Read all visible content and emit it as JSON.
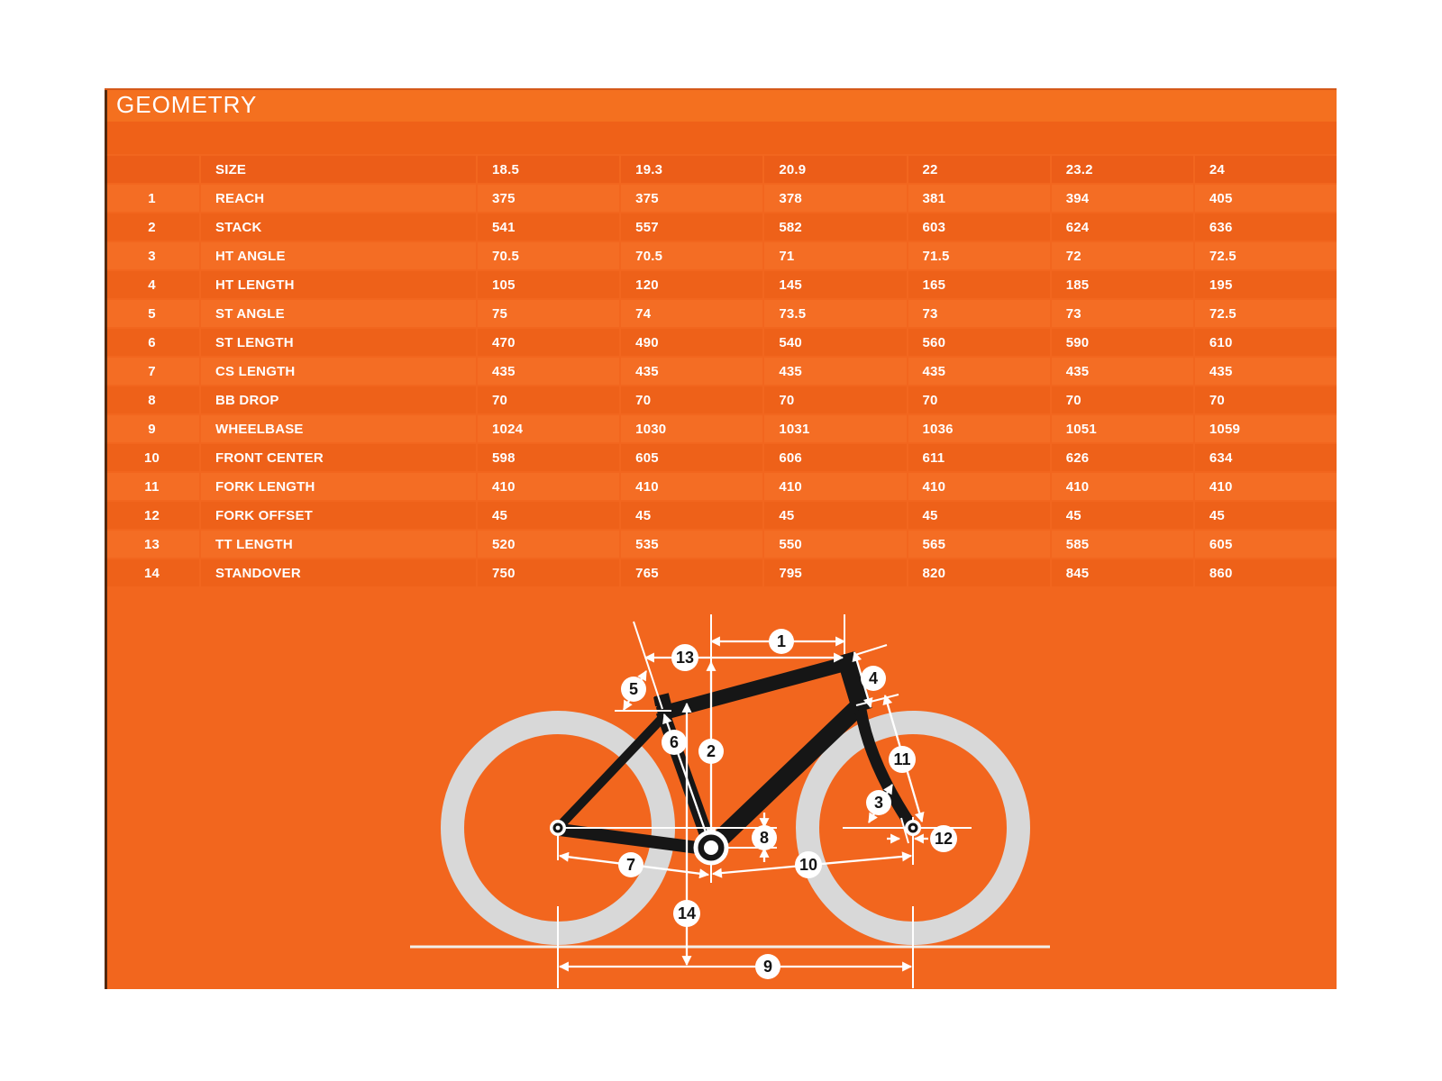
{
  "header": {
    "title": "GEOMETRY"
  },
  "table": {
    "size_label": "SIZE",
    "columns": [
      "18.5",
      "19.3",
      "20.9",
      "22",
      "23.2",
      "24"
    ],
    "rows": [
      {
        "num": "1",
        "label": "REACH",
        "values": [
          "375",
          "375",
          "378",
          "381",
          "394",
          "405"
        ]
      },
      {
        "num": "2",
        "label": "STACK",
        "values": [
          "541",
          "557",
          "582",
          "603",
          "624",
          "636"
        ]
      },
      {
        "num": "3",
        "label": "HT ANGLE",
        "values": [
          "70.5",
          "70.5",
          "71",
          "71.5",
          "72",
          "72.5"
        ]
      },
      {
        "num": "4",
        "label": "HT LENGTH",
        "values": [
          "105",
          "120",
          "145",
          "165",
          "185",
          "195"
        ]
      },
      {
        "num": "5",
        "label": "ST ANGLE",
        "values": [
          "75",
          "74",
          "73.5",
          "73",
          "73",
          "72.5"
        ]
      },
      {
        "num": "6",
        "label": "ST LENGTH",
        "values": [
          "470",
          "490",
          "540",
          "560",
          "590",
          "610"
        ]
      },
      {
        "num": "7",
        "label": "CS LENGTH",
        "values": [
          "435",
          "435",
          "435",
          "435",
          "435",
          "435"
        ]
      },
      {
        "num": "8",
        "label": "BB DROP",
        "values": [
          "70",
          "70",
          "70",
          "70",
          "70",
          "70"
        ]
      },
      {
        "num": "9",
        "label": "WHEELBASE",
        "values": [
          "1024",
          "1030",
          "1031",
          "1036",
          "1051",
          "1059"
        ]
      },
      {
        "num": "10",
        "label": "FRONT CENTER",
        "values": [
          "598",
          "605",
          "606",
          "611",
          "626",
          "634"
        ]
      },
      {
        "num": "11",
        "label": "FORK LENGTH",
        "values": [
          "410",
          "410",
          "410",
          "410",
          "410",
          "410"
        ]
      },
      {
        "num": "12",
        "label": "FORK OFFSET",
        "values": [
          "45",
          "45",
          "45",
          "45",
          "45",
          "45"
        ]
      },
      {
        "num": "13",
        "label": "TT LENGTH",
        "values": [
          "520",
          "535",
          "550",
          "565",
          "585",
          "605"
        ]
      },
      {
        "num": "14",
        "label": "STANDOVER",
        "values": [
          "750",
          "765",
          "795",
          "820",
          "845",
          "860"
        ]
      }
    ]
  },
  "diagram": {
    "callouts": [
      "1",
      "2",
      "3",
      "4",
      "5",
      "6",
      "7",
      "8",
      "9",
      "10",
      "11",
      "12",
      "13",
      "14"
    ]
  },
  "colors": {
    "panel_orange": "#F2661E",
    "row_light": "#F46D24",
    "row_dark": "#EE6119",
    "size_row": "#EC5D18",
    "header_band": "#F4701F",
    "spacer_band": "#EF6118",
    "separator": "#E85C19",
    "text_white": "#FFFFFF",
    "frame_black": "#161616",
    "wheel_gray": "#D8D8D8",
    "dimension_white": "#FFFFFF",
    "ground_line": "#F2EEE8",
    "left_edge": "#2B1A0B"
  }
}
